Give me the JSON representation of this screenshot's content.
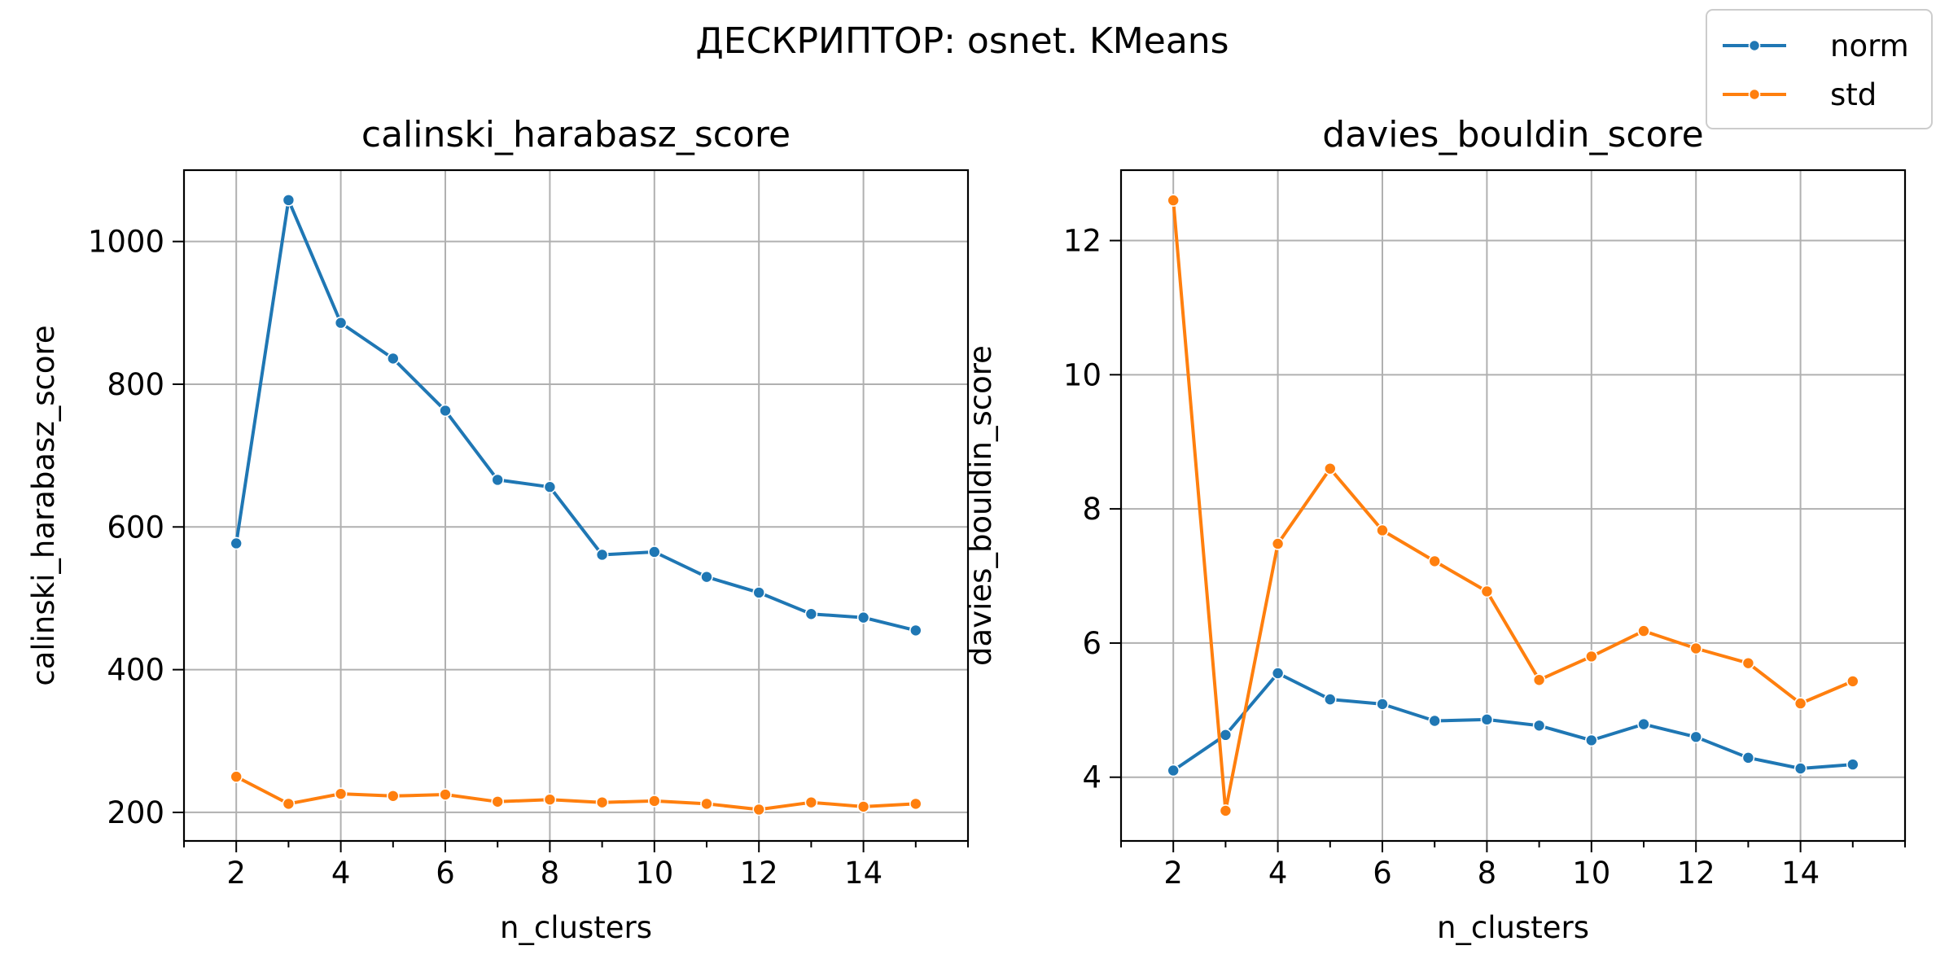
{
  "suptitle": "ДЕСКРИПТОР: osnet. KMeans",
  "legend": {
    "placement": "top-right",
    "entries": [
      {
        "label": "norm",
        "color": "#1f77b4"
      },
      {
        "label": "std",
        "color": "#ff7f0e"
      }
    ]
  },
  "chart_data": [
    {
      "type": "line",
      "title": "calinski_harabasz_score",
      "xlabel": "n_clusters",
      "ylabel": "calinski_harabasz_score",
      "xlim": [
        1,
        16
      ],
      "ylim": [
        160,
        1100
      ],
      "xticks": [
        2,
        4,
        6,
        8,
        10,
        12,
        14
      ],
      "yticks": [
        200,
        400,
        600,
        800,
        1000
      ],
      "grid": true,
      "x": [
        2,
        3,
        4,
        5,
        6,
        7,
        8,
        9,
        10,
        11,
        12,
        13,
        14,
        15
      ],
      "series": [
        {
          "name": "norm",
          "color": "#1f77b4",
          "values": [
            577,
            1058,
            886,
            836,
            763,
            666,
            656,
            561,
            565,
            530,
            508,
            478,
            473,
            455
          ]
        },
        {
          "name": "std",
          "color": "#ff7f0e",
          "values": [
            250,
            212,
            226,
            223,
            225,
            215,
            218,
            214,
            216,
            212,
            204,
            214,
            208,
            212
          ]
        }
      ]
    },
    {
      "type": "line",
      "title": "davies_bouldin_score",
      "xlabel": "n_clusters",
      "ylabel": "davies_bouldin_score",
      "xlim": [
        1,
        16
      ],
      "ylim": [
        3.05,
        13.05
      ],
      "xticks": [
        2,
        4,
        6,
        8,
        10,
        12,
        14
      ],
      "yticks": [
        4,
        6,
        8,
        10,
        12
      ],
      "grid": true,
      "x": [
        2,
        3,
        4,
        5,
        6,
        7,
        8,
        9,
        10,
        11,
        12,
        13,
        14,
        15
      ],
      "series": [
        {
          "name": "norm",
          "color": "#1f77b4",
          "values": [
            4.1,
            4.63,
            5.55,
            5.16,
            5.09,
            4.84,
            4.86,
            4.77,
            4.55,
            4.79,
            4.6,
            4.29,
            4.13,
            4.19
          ]
        },
        {
          "name": "std",
          "color": "#ff7f0e",
          "values": [
            12.6,
            3.5,
            7.48,
            8.6,
            7.68,
            7.22,
            6.77,
            5.45,
            5.8,
            6.18,
            5.92,
            5.7,
            5.1,
            5.43
          ]
        }
      ]
    }
  ]
}
